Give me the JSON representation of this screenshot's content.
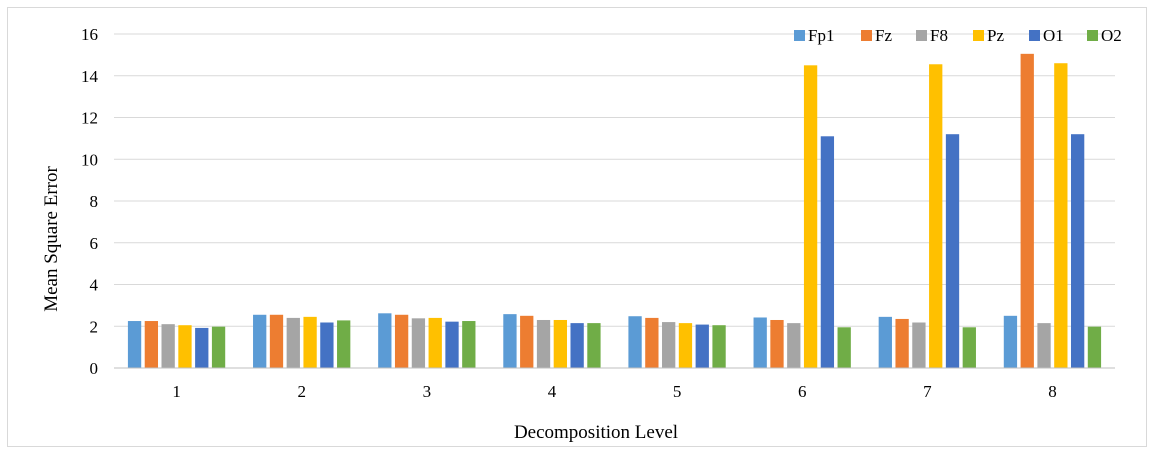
{
  "chart_data": {
    "type": "bar",
    "title": "",
    "xlabel": "Decomposition Level",
    "ylabel": "Mean Square Error",
    "categories": [
      "1",
      "2",
      "3",
      "4",
      "5",
      "6",
      "7",
      "8"
    ],
    "ylim": [
      0,
      16
    ],
    "yticks": [
      0,
      2,
      4,
      6,
      8,
      10,
      12,
      14,
      16
    ],
    "grid": true,
    "legend_position": "top-right",
    "series": [
      {
        "name": "Fp1",
        "color": "#5b9bd5",
        "values": [
          2.25,
          2.55,
          2.62,
          2.58,
          2.48,
          2.42,
          2.45,
          2.5
        ]
      },
      {
        "name": "Fz",
        "color": "#ed7d31",
        "values": [
          2.25,
          2.55,
          2.55,
          2.5,
          2.4,
          2.3,
          2.35,
          15.05
        ]
      },
      {
        "name": "F8",
        "color": "#a5a5a5",
        "values": [
          2.1,
          2.4,
          2.38,
          2.3,
          2.2,
          2.15,
          2.18,
          2.15
        ]
      },
      {
        "name": "Pz",
        "color": "#ffc000",
        "values": [
          2.05,
          2.45,
          2.4,
          2.3,
          2.15,
          14.5,
          14.55,
          14.6
        ]
      },
      {
        "name": "O1",
        "color": "#4472c4",
        "values": [
          1.92,
          2.18,
          2.22,
          2.15,
          2.08,
          11.1,
          11.2,
          11.2
        ]
      },
      {
        "name": "O2",
        "color": "#70ad47",
        "values": [
          1.98,
          2.28,
          2.25,
          2.15,
          2.05,
          1.95,
          1.95,
          1.98
        ]
      }
    ]
  }
}
